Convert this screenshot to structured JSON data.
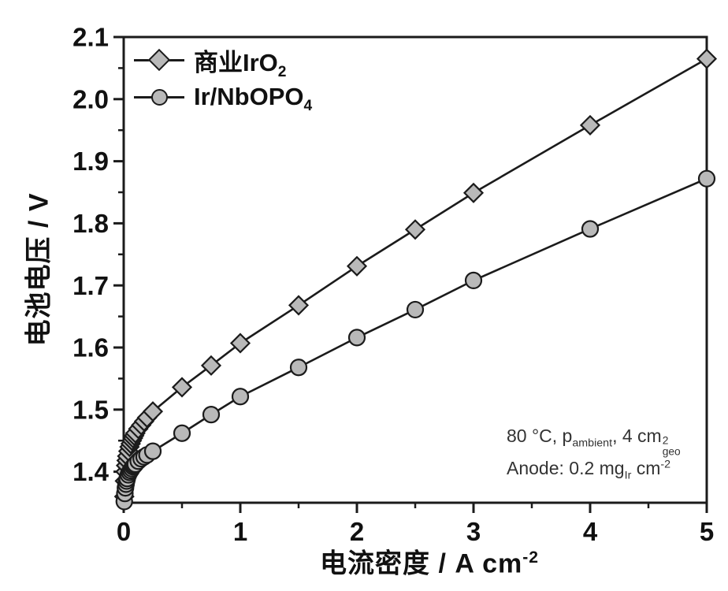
{
  "axes": {
    "ylabel": "电池电压 / V",
    "xlabel_main": "电流密度 / A cm",
    "xlabel_sup": "-2"
  },
  "legend": {
    "items": [
      {
        "label_main": "商业IrO",
        "label_sub": "2",
        "marker": "diamond"
      },
      {
        "label_main": "Ir/NbOPO",
        "label_sub": "4",
        "marker": "circle"
      }
    ]
  },
  "annotation": {
    "line1_pre": "80 °C, p",
    "line1_sub1": "ambient",
    "line1_mid": ", 4 cm",
    "line1_sup": "2",
    "line1_sub2": "geo",
    "line2_pre": "Anode: 0.2 mg",
    "line2_sub": "Ir",
    "line2_mid": " cm",
    "line2_sup": "-2"
  },
  "chart_data": {
    "type": "line",
    "title": "",
    "xlabel": "电流密度 / A cm⁻²",
    "ylabel": "电池电压 / V",
    "xlim": [
      0,
      5
    ],
    "ylim": [
      1.35,
      2.1
    ],
    "x_ticks": [
      0,
      1,
      2,
      3,
      4,
      5
    ],
    "x_minor_step": 0.5,
    "y_ticks": [
      1.4,
      1.5,
      1.6,
      1.7,
      1.8,
      1.9,
      2.0,
      2.1
    ],
    "y_minor_step": 0.05,
    "grid": false,
    "legend_position": "upper-left",
    "frame_color": "#1b1b1b",
    "marker_fill": "#b9b9b9",
    "series": [
      {
        "name": "商业IrO₂",
        "marker": "diamond",
        "color": "#1b1b1b",
        "x": [
          0.005,
          0.01,
          0.015,
          0.02,
          0.025,
          0.03,
          0.04,
          0.05,
          0.06,
          0.07,
          0.08,
          0.09,
          0.1,
          0.125,
          0.15,
          0.175,
          0.2,
          0.25,
          0.5,
          0.75,
          1.0,
          1.5,
          2.0,
          2.5,
          3.0,
          4.0,
          5.0
        ],
        "y": [
          1.36,
          1.385,
          1.4,
          1.41,
          1.418,
          1.425,
          1.433,
          1.44,
          1.445,
          1.45,
          1.454,
          1.458,
          1.462,
          1.469,
          1.475,
          1.481,
          1.487,
          1.497,
          1.536,
          1.571,
          1.607,
          1.668,
          1.731,
          1.79,
          1.849,
          1.958,
          2.065
        ]
      },
      {
        "name": "Ir/NbOPO₄",
        "marker": "circle",
        "color": "#1b1b1b",
        "x": [
          0.005,
          0.01,
          0.015,
          0.02,
          0.025,
          0.03,
          0.04,
          0.05,
          0.06,
          0.07,
          0.08,
          0.09,
          0.1,
          0.125,
          0.15,
          0.175,
          0.2,
          0.25,
          0.5,
          0.75,
          1.0,
          1.5,
          2.0,
          2.5,
          3.0,
          4.0,
          5.0
        ],
        "y": [
          1.352,
          1.365,
          1.374,
          1.38,
          1.385,
          1.389,
          1.395,
          1.399,
          1.402,
          1.405,
          1.408,
          1.41,
          1.412,
          1.417,
          1.421,
          1.424,
          1.427,
          1.433,
          1.462,
          1.492,
          1.521,
          1.568,
          1.616,
          1.661,
          1.708,
          1.791,
          1.872
        ]
      }
    ],
    "annotation_line1": "80 °C, p_ambient, 4 cm²_geo",
    "annotation_line2": "Anode: 0.2 mg_Ir cm⁻²"
  }
}
